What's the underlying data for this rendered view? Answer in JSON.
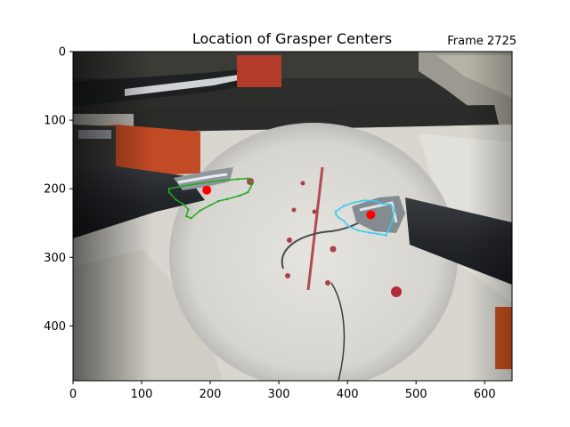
{
  "chart_data": {
    "type": "scatter",
    "title": "Location of Grasper Centers",
    "frame_label": "Frame 2725",
    "xlabel": "",
    "ylabel": "",
    "xlim": [
      0,
      640
    ],
    "ylim": [
      480,
      0
    ],
    "x_ticks": [
      0,
      100,
      200,
      300,
      400,
      500,
      600
    ],
    "y_ticks": [
      0,
      100,
      200,
      300,
      400
    ],
    "background": "surgical video frame (suturing pad with needle and two graspers)",
    "series": [
      {
        "name": "grasper centers",
        "color": "#ff0000",
        "points": [
          {
            "x": 195,
            "y": 202
          },
          {
            "x": 434,
            "y": 238
          }
        ]
      }
    ],
    "outlines": [
      {
        "name": "left grasper outline",
        "color": "#22aa22",
        "points": [
          [
            140,
            200
          ],
          [
            160,
            196
          ],
          [
            180,
            193
          ],
          [
            200,
            190
          ],
          [
            220,
            188
          ],
          [
            240,
            186
          ],
          [
            255,
            185
          ],
          [
            262,
            192
          ],
          [
            255,
            205
          ],
          [
            243,
            210
          ],
          [
            225,
            215
          ],
          [
            212,
            218
          ],
          [
            200,
            224
          ],
          [
            185,
            232
          ],
          [
            172,
            243
          ],
          [
            165,
            240
          ],
          [
            168,
            230
          ],
          [
            160,
            222
          ],
          [
            150,
            216
          ],
          [
            140,
            205
          ]
        ]
      },
      {
        "name": "right grasper outline",
        "color": "#33ccee",
        "points": [
          [
            383,
            233
          ],
          [
            395,
            225
          ],
          [
            410,
            220
          ],
          [
            425,
            217
          ],
          [
            442,
            218
          ],
          [
            450,
            222
          ],
          [
            463,
            223
          ],
          [
            468,
            232
          ],
          [
            466,
            246
          ],
          [
            460,
            260
          ],
          [
            456,
            268
          ],
          [
            445,
            266
          ],
          [
            432,
            264
          ],
          [
            416,
            261
          ],
          [
            402,
            255
          ],
          [
            395,
            247
          ],
          [
            387,
            242
          ],
          [
            383,
            237
          ]
        ]
      }
    ]
  }
}
